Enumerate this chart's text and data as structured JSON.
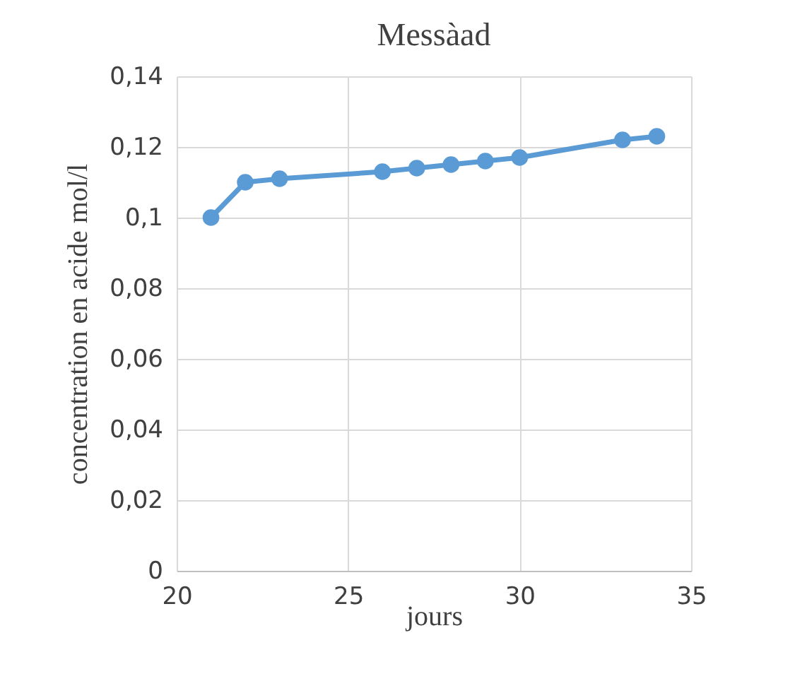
{
  "chart_data": {
    "type": "line",
    "title": "Messàad",
    "xlabel": "jours",
    "ylabel": "concentration en acide mol/l",
    "x": [
      21,
      22,
      23,
      26,
      27,
      28,
      29,
      30,
      33,
      34
    ],
    "series": [
      {
        "color": "#5b9bd5",
        "values": [
          0.1,
          0.11,
          0.111,
          0.113,
          0.114,
          0.115,
          0.116,
          0.117,
          0.122,
          0.123
        ]
      }
    ],
    "xlim": [
      20,
      35
    ],
    "xticks": [
      20,
      25,
      30,
      35
    ],
    "ylim": [
      0,
      0.14
    ],
    "yticks": [
      {
        "value": 0,
        "label": "0"
      },
      {
        "value": 0.02,
        "label": "0,02"
      },
      {
        "value": 0.04,
        "label": "0,04"
      },
      {
        "value": 0.06,
        "label": "0,06"
      },
      {
        "value": 0.08,
        "label": "0,08"
      },
      {
        "value": 0.1,
        "label": "0,1"
      },
      {
        "value": 0.12,
        "label": "0,12"
      },
      {
        "value": 0.14,
        "label": "0,14"
      }
    ],
    "grid": true,
    "marker": "circle",
    "line_style": "solid"
  }
}
